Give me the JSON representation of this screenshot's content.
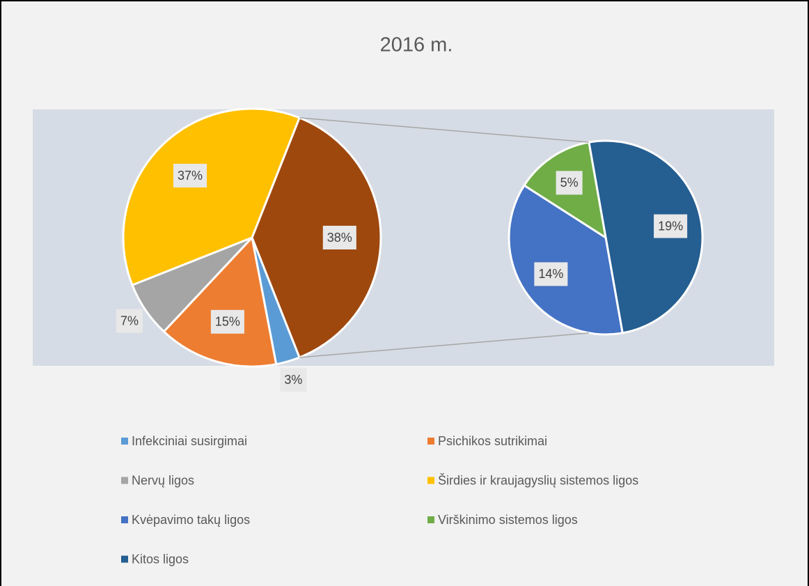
{
  "chart_data": {
    "type": "pie-of-pie",
    "title": "2016 m.",
    "categories": [
      "Infekciniai susirgimai",
      "Psichikos sutrikimai",
      "Nervų ligos",
      "Širdies ir kraujagyslių sistemos ligos",
      "Kvėpavimo takų ligos",
      "Virškinimo sistemos ligos",
      "Kitos ligos"
    ],
    "values": [
      3,
      15,
      7,
      37,
      14,
      5,
      19
    ],
    "value_labels": [
      "3%",
      "15%",
      "7%",
      "37%",
      "14%",
      "5%",
      "19%"
    ],
    "colors": [
      "#5b9bd5",
      "#ed7d31",
      "#a5a5a5",
      "#ffc000",
      "#4472c4",
      "#70ad47",
      "#255e91"
    ],
    "secondary_count": 3,
    "secondary_total": 38,
    "secondary_total_label": "38%",
    "secondary_total_color": "#9e480e"
  }
}
